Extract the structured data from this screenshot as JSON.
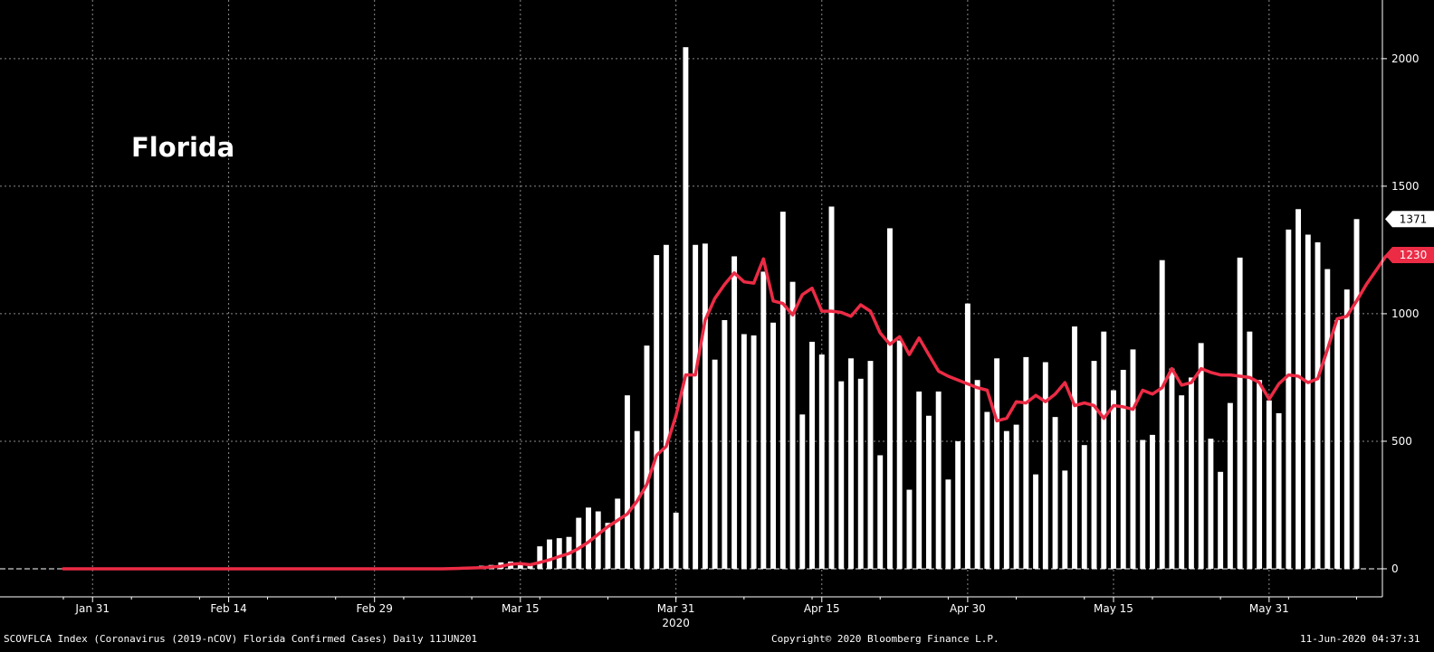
{
  "chart_data": {
    "type": "bar",
    "title": "Florida",
    "x_start": "2020-01-28",
    "x_end": "2020-06-11",
    "x_ticks": [
      {
        "label": "Jan 31",
        "date": "2020-01-31"
      },
      {
        "label": "Feb 14",
        "date": "2020-02-14"
      },
      {
        "label": "Feb 29",
        "date": "2020-02-29"
      },
      {
        "label": "Mar 15",
        "date": "2020-03-15"
      },
      {
        "label": "Mar 31",
        "date": "2020-03-31"
      },
      {
        "label": "Apr 15",
        "date": "2020-04-15"
      },
      {
        "label": "Apr 30",
        "date": "2020-04-30"
      },
      {
        "label": "May 15",
        "date": "2020-05-15"
      },
      {
        "label": "May 31",
        "date": "2020-05-31"
      }
    ],
    "year_label": "2020",
    "y_ticks": [
      0,
      500,
      1000,
      1500,
      2000
    ],
    "ylim": [
      -110,
      2230
    ],
    "grid": true,
    "series": [
      {
        "kind": "bar",
        "color": "#ffffff",
        "start_date": "2020-03-11",
        "values": [
          12,
          15,
          25,
          28,
          18,
          16,
          88,
          115,
          120,
          125,
          200,
          240,
          225,
          180,
          275,
          680,
          540,
          875,
          1230,
          1270,
          220,
          2045,
          1270,
          1275,
          820,
          975,
          1225,
          920,
          915,
          1165,
          965,
          1400,
          1125,
          605,
          890,
          840,
          1420,
          735,
          825,
          745,
          815,
          445,
          1335,
          895,
          310,
          695,
          600,
          695,
          350,
          500,
          1040,
          740,
          615,
          825,
          540,
          565,
          830,
          370,
          810,
          595,
          385,
          950,
          485,
          815,
          930,
          700,
          780,
          860,
          505,
          525,
          1210,
          785,
          680,
          750,
          885,
          510,
          380,
          650,
          1220,
          930,
          740,
          660,
          610,
          1330,
          1410,
          1310,
          1280,
          1175,
          975,
          1095,
          1371
        ]
      },
      {
        "kind": "line",
        "color": "#ec2b45",
        "points": [
          [
            "2020-01-28",
            0
          ],
          [
            "2020-03-07",
            0
          ],
          [
            "2020-03-09",
            2
          ],
          [
            "2020-03-11",
            4
          ],
          [
            "2020-03-13",
            10
          ],
          [
            "2020-03-14",
            18
          ],
          [
            "2020-03-15",
            20
          ],
          [
            "2020-03-16",
            16
          ],
          [
            "2020-03-17",
            25
          ],
          [
            "2020-03-18",
            35
          ],
          [
            "2020-03-19",
            48
          ],
          [
            "2020-03-20",
            60
          ],
          [
            "2020-03-21",
            80
          ],
          [
            "2020-03-22",
            105
          ],
          [
            "2020-03-23",
            135
          ],
          [
            "2020-03-24",
            165
          ],
          [
            "2020-03-25",
            190
          ],
          [
            "2020-03-26",
            215
          ],
          [
            "2020-03-27",
            265
          ],
          [
            "2020-03-28",
            330
          ],
          [
            "2020-03-29",
            445
          ],
          [
            "2020-03-30",
            480
          ],
          [
            "2020-03-31",
            600
          ],
          [
            "2020-04-01",
            760
          ],
          [
            "2020-04-02",
            760
          ],
          [
            "2020-04-03",
            975
          ],
          [
            "2020-04-04",
            1060
          ],
          [
            "2020-04-05",
            1115
          ],
          [
            "2020-04-06",
            1160
          ],
          [
            "2020-04-07",
            1125
          ],
          [
            "2020-04-08",
            1120
          ],
          [
            "2020-04-09",
            1215
          ],
          [
            "2020-04-10",
            1050
          ],
          [
            "2020-04-11",
            1040
          ],
          [
            "2020-04-12",
            995
          ],
          [
            "2020-04-13",
            1075
          ],
          [
            "2020-04-14",
            1100
          ],
          [
            "2020-04-15",
            1010
          ],
          [
            "2020-04-16",
            1010
          ],
          [
            "2020-04-17",
            1005
          ],
          [
            "2020-04-18",
            990
          ],
          [
            "2020-04-19",
            1035
          ],
          [
            "2020-04-20",
            1010
          ],
          [
            "2020-04-21",
            925
          ],
          [
            "2020-04-22",
            880
          ],
          [
            "2020-04-23",
            910
          ],
          [
            "2020-04-24",
            840
          ],
          [
            "2020-04-25",
            905
          ],
          [
            "2020-04-26",
            840
          ],
          [
            "2020-04-27",
            775
          ],
          [
            "2020-04-28",
            755
          ],
          [
            "2020-04-29",
            740
          ],
          [
            "2020-04-30",
            725
          ],
          [
            "2020-05-01",
            710
          ],
          [
            "2020-05-02",
            700
          ],
          [
            "2020-05-03",
            580
          ],
          [
            "2020-05-04",
            590
          ],
          [
            "2020-05-05",
            655
          ],
          [
            "2020-05-06",
            650
          ],
          [
            "2020-05-07",
            680
          ],
          [
            "2020-05-08",
            655
          ],
          [
            "2020-05-09",
            685
          ],
          [
            "2020-05-10",
            730
          ],
          [
            "2020-05-11",
            640
          ],
          [
            "2020-05-12",
            650
          ],
          [
            "2020-05-13",
            640
          ],
          [
            "2020-05-14",
            590
          ],
          [
            "2020-05-15",
            640
          ],
          [
            "2020-05-16",
            635
          ],
          [
            "2020-05-17",
            625
          ],
          [
            "2020-05-18",
            700
          ],
          [
            "2020-05-19",
            685
          ],
          [
            "2020-05-20",
            710
          ],
          [
            "2020-05-21",
            785
          ],
          [
            "2020-05-22",
            720
          ],
          [
            "2020-05-23",
            730
          ],
          [
            "2020-05-24",
            785
          ],
          [
            "2020-05-25",
            770
          ],
          [
            "2020-05-26",
            760
          ],
          [
            "2020-05-27",
            760
          ],
          [
            "2020-05-28",
            755
          ],
          [
            "2020-05-29",
            750
          ],
          [
            "2020-05-30",
            730
          ],
          [
            "2020-05-31",
            665
          ],
          [
            "2020-06-01",
            725
          ],
          [
            "2020-06-02",
            760
          ],
          [
            "2020-06-03",
            755
          ],
          [
            "2020-06-04",
            730
          ],
          [
            "2020-06-05",
            745
          ],
          [
            "2020-06-06",
            860
          ],
          [
            "2020-06-07",
            980
          ],
          [
            "2020-06-08",
            990
          ],
          [
            "2020-06-09",
            1050
          ],
          [
            "2020-06-10",
            1115
          ],
          [
            "2020-06-11",
            1170
          ],
          [
            "2020-06-12",
            1225
          ],
          [
            "2020-06-13",
            1230
          ]
        ]
      }
    ],
    "last_value_tags": [
      {
        "value": 1371,
        "label": "1371",
        "bg": "#ffffff",
        "fg": "#000000"
      },
      {
        "value": 1230,
        "label": "1230",
        "bg": "#ec2b45",
        "fg": "#ffffff"
      }
    ]
  },
  "footer": {
    "left": "SCOVFLCA Index (Coronavirus (2019-nCOV) Florida Confirmed Cases)  Daily 11JUN201",
    "center": "Copyright© 2020 Bloomberg Finance L.P.",
    "right": "11-Jun-2020 04:37:31"
  }
}
